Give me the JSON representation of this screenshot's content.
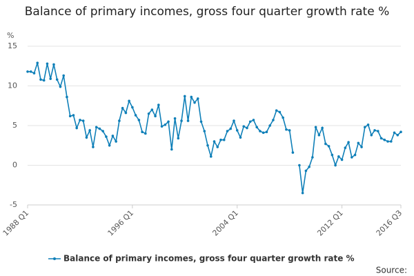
{
  "chart_data": {
    "type": "line",
    "title": "Balance of primary incomes, gross four quarter growth rate %",
    "y_label": "%",
    "source": "Source:",
    "categories": [
      "1988 Q1",
      null,
      null,
      null,
      null,
      null,
      null,
      null,
      null,
      null,
      null,
      null,
      null,
      null,
      null,
      null,
      null,
      null,
      null,
      null,
      null,
      null,
      null,
      null,
      null,
      null,
      null,
      null,
      null,
      null,
      null,
      null,
      "1996 Q1",
      null,
      null,
      null,
      null,
      null,
      null,
      null,
      null,
      null,
      null,
      null,
      null,
      null,
      null,
      null,
      null,
      null,
      null,
      null,
      null,
      null,
      null,
      null,
      null,
      null,
      null,
      null,
      null,
      null,
      null,
      null,
      "2004 Q1",
      null,
      null,
      null,
      null,
      null,
      null,
      null,
      null,
      null,
      null,
      null,
      null,
      null,
      null,
      null,
      null,
      null,
      null,
      null,
      null,
      null,
      null,
      null,
      null,
      null,
      null,
      null,
      null,
      null,
      null,
      null,
      "2012 Q1",
      null,
      null,
      null,
      null,
      null,
      null,
      null,
      null,
      null,
      null,
      null,
      null,
      null,
      null,
      null,
      null,
      null,
      "2016 Q3"
    ],
    "series": [
      {
        "name": "Balance of primary incomes, gross four quarter growth rate %",
        "color": "#0e7fb8",
        "values": [
          11.8,
          11.8,
          11.6,
          12.9,
          10.8,
          10.7,
          12.8,
          10.9,
          12.7,
          10.8,
          9.9,
          11.3,
          8.6,
          6.2,
          6.3,
          4.7,
          5.7,
          5.6,
          3.5,
          4.4,
          2.3,
          4.8,
          4.6,
          4.3,
          3.6,
          2.5,
          3.7,
          3.0,
          5.6,
          7.2,
          6.6,
          8.1,
          7.3,
          6.3,
          5.7,
          4.2,
          4.0,
          6.5,
          7.0,
          6.2,
          7.6,
          4.9,
          5.1,
          5.5,
          2.0,
          5.9,
          3.4,
          5.6,
          8.7,
          5.6,
          8.6,
          7.9,
          8.4,
          5.5,
          4.3,
          2.5,
          1.1,
          3.0,
          2.3,
          3.2,
          3.2,
          4.3,
          4.6,
          5.6,
          4.4,
          3.5,
          4.9,
          4.7,
          5.5,
          5.7,
          4.8,
          4.3,
          4.1,
          4.2,
          5.0,
          5.7,
          6.9,
          6.7,
          6.0,
          4.5,
          4.4,
          1.6,
          null,
          0.0,
          -3.5,
          -0.7,
          -0.2,
          1.0,
          4.8,
          3.8,
          4.7,
          2.7,
          2.4,
          1.3,
          0.0,
          1.1,
          0.7,
          2.2,
          2.9,
          1.0,
          1.3,
          2.8,
          2.3,
          4.8,
          5.1,
          3.8,
          4.4,
          4.3,
          3.4,
          3.2,
          3.0,
          3.0,
          4.1,
          3.8,
          4.2
        ]
      }
    ],
    "ylim": [
      -5,
      15
    ],
    "yticks": [
      -5,
      0,
      5,
      10,
      15
    ],
    "grid": true
  }
}
